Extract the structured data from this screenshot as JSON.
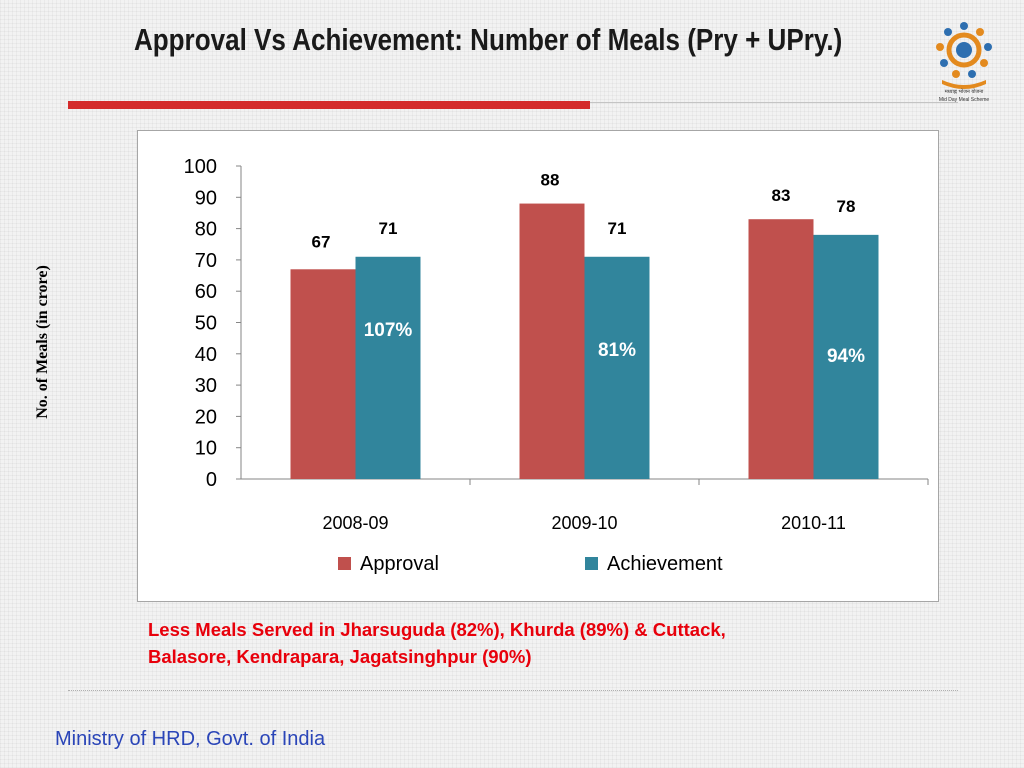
{
  "slide": {
    "title": "Approval Vs Achievement:  Number of Meals (Pry + UPry.)",
    "note_line1": "Less Meals Served in  Jharsuguda (82%), Khurda (89%) & Cuttack,",
    "note_line2": "Balasore, Kendrapara, Jagatsinghpur  (90%)",
    "footer": "Ministry of HRD, Govt. of India",
    "logo": {
      "icon": "mid-day-meal-logo-icon",
      "text_hindi": "मध्याह्न भोजन योजना",
      "text_english": "Mid Day Meal Scheme"
    },
    "colors": {
      "rule_red": "#d42b2b",
      "note": "#e8000b",
      "footer": "#2a45b8"
    }
  },
  "chart_data": {
    "type": "bar",
    "title": "",
    "xlabel": "",
    "ylabel": "No. of Meals (in crore)",
    "ylim": [
      0,
      100
    ],
    "yticks": [
      0,
      10,
      20,
      30,
      40,
      50,
      60,
      70,
      80,
      90,
      100
    ],
    "categories": [
      "2008-09",
      "2009-10",
      "2010-11"
    ],
    "series": [
      {
        "name": "Approval",
        "values": [
          67,
          88,
          83
        ],
        "labels": [
          "67",
          "88",
          "83"
        ],
        "color": "#c0504d"
      },
      {
        "name": "Achievement",
        "values": [
          71,
          71,
          78
        ],
        "labels": [
          "71",
          "71",
          "78"
        ],
        "color": "#31859c"
      }
    ],
    "percent_labels": [
      "107%",
      "81%",
      "94%"
    ],
    "grid": false,
    "legend": "bottom"
  }
}
